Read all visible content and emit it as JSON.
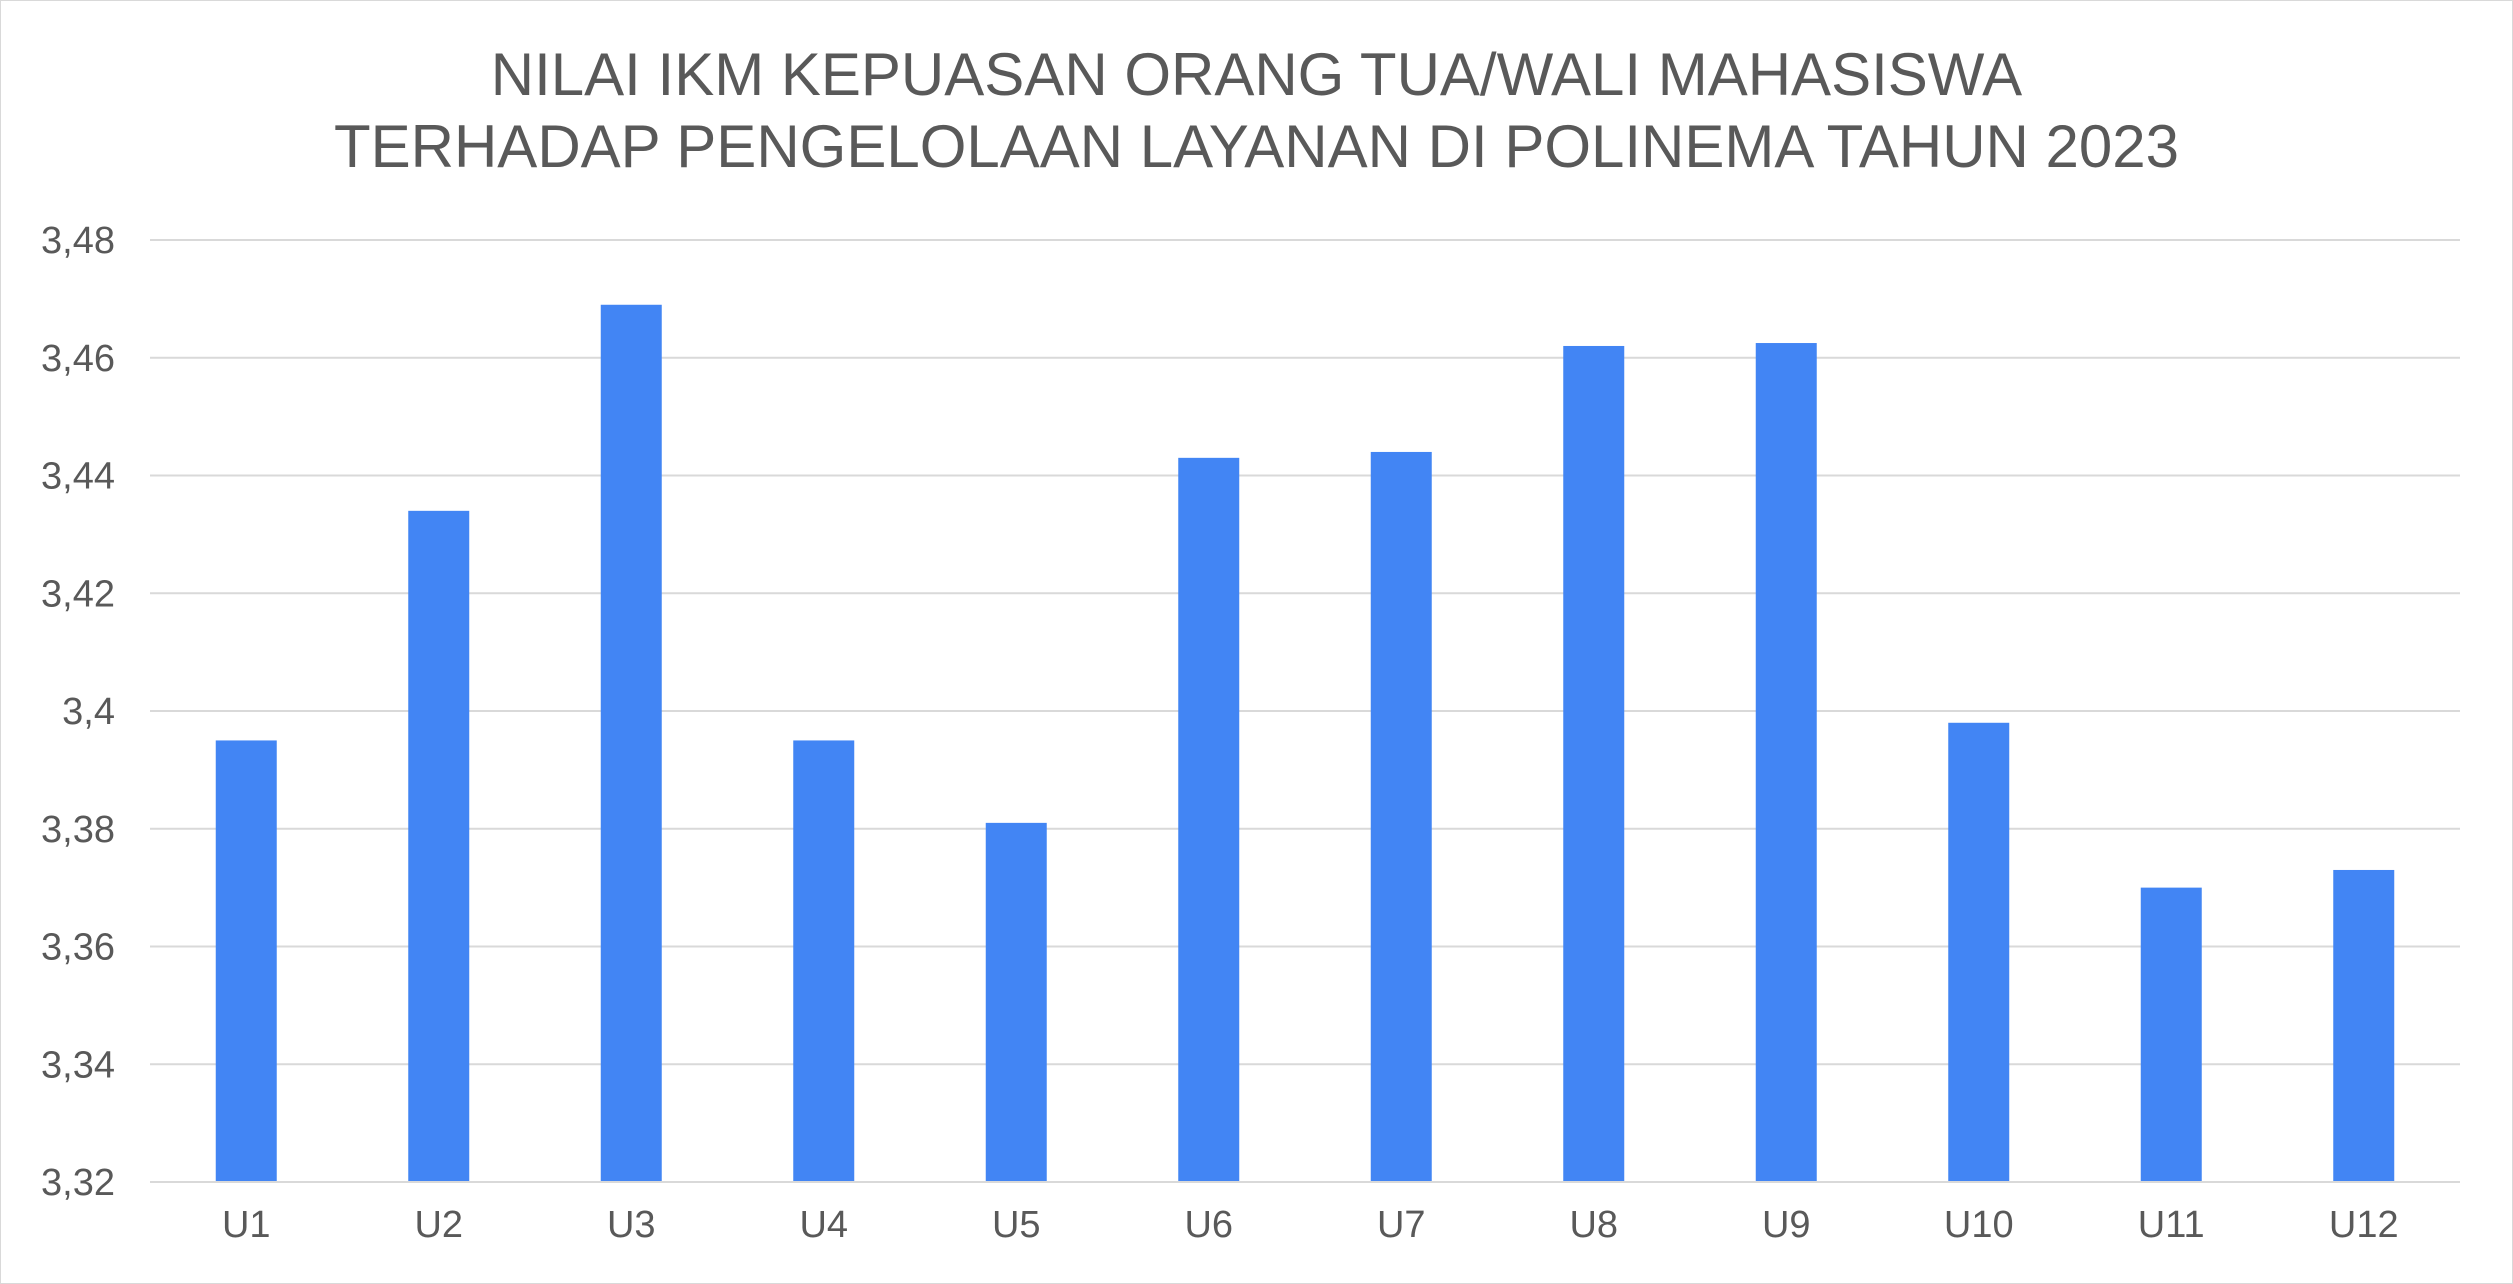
{
  "chart_data": {
    "type": "bar",
    "title_lines": [
      "NILAI IKM KEPUASAN ORANG TUA/WALI MAHASISWA",
      "TERHADAP PENGELOLAAN LAYANAN DI POLINEMA TAHUN 2023"
    ],
    "categories": [
      "U1",
      "U2",
      "U3",
      "U4",
      "U5",
      "U6",
      "U7",
      "U8",
      "U9",
      "U10",
      "U11",
      "U12"
    ],
    "values": [
      3.395,
      3.434,
      3.469,
      3.395,
      3.381,
      3.443,
      3.444,
      3.462,
      3.4625,
      3.398,
      3.37,
      3.373
    ],
    "ylim": [
      3.32,
      3.48
    ],
    "yticks": [
      3.32,
      3.34,
      3.36,
      3.38,
      3.4,
      3.42,
      3.44,
      3.46,
      3.48
    ],
    "ytick_labels": [
      "3,32",
      "3,34",
      "3,36",
      "3,38",
      "3,4",
      "3,42",
      "3,44",
      "3,46",
      "3,48"
    ],
    "xlabel": "",
    "ylabel": "",
    "grid": true,
    "legend": "none",
    "bar_color": "#4285f4",
    "grid_color": "#d9d9d9",
    "text_color": "#595959"
  }
}
